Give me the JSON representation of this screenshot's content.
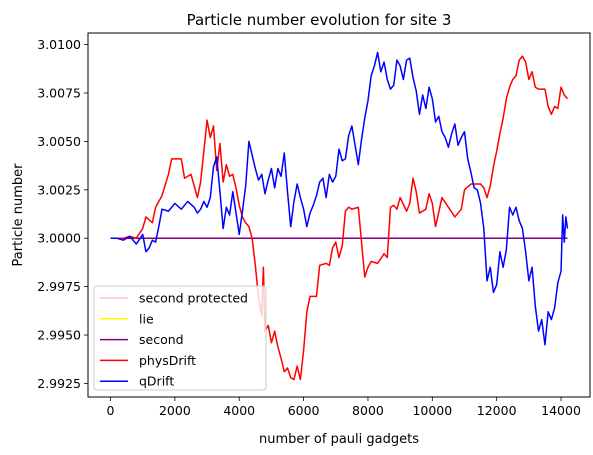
{
  "chart_data": {
    "type": "line",
    "title": "Particle number evolution for site 3",
    "xlabel": "number of pauli gadgets",
    "ylabel": "Particle number",
    "xlim": [
      -700,
      14900
    ],
    "ylim": [
      2.9918,
      3.0106
    ],
    "xticks": [
      0,
      2000,
      4000,
      6000,
      8000,
      10000,
      12000,
      14000
    ],
    "xtick_labels": [
      "0",
      "2000",
      "4000",
      "6000",
      "8000",
      "10000",
      "12000",
      "14000"
    ],
    "yticks": [
      2.9925,
      2.995,
      2.9975,
      3.0,
      3.0025,
      3.005,
      3.0075,
      3.01
    ],
    "ytick_labels": [
      "2.9925",
      "2.9950",
      "2.9975",
      "3.0000",
      "3.0025",
      "3.0050",
      "3.0075",
      "3.0100"
    ],
    "grid": false,
    "legend_position": "lower-left",
    "series": [
      {
        "name": "second protected",
        "color": "#ffc0cb",
        "points": [
          [
            0,
            3.0
          ],
          [
            14200,
            3.0
          ]
        ]
      },
      {
        "name": "lie",
        "color": "#ffff00",
        "points": [
          [
            0,
            3.0
          ],
          [
            14200,
            3.0
          ]
        ]
      },
      {
        "name": "second",
        "color": "#800080",
        "points": [
          [
            0,
            3.0
          ],
          [
            14200,
            3.0
          ]
        ]
      },
      {
        "name": "physDrift",
        "color": "#ff0000",
        "points": [
          [
            0,
            3.0
          ],
          [
            400,
            3.0
          ],
          [
            600,
            3.0001
          ],
          [
            800,
            3.0
          ],
          [
            1000,
            3.0005
          ],
          [
            1100,
            3.0011
          ],
          [
            1300,
            3.0008
          ],
          [
            1400,
            3.0016
          ],
          [
            1600,
            3.0022
          ],
          [
            1800,
            3.0033
          ],
          [
            1900,
            3.0041
          ],
          [
            2200,
            3.0041
          ],
          [
            2300,
            3.0031
          ],
          [
            2500,
            3.0033
          ],
          [
            2700,
            3.0021
          ],
          [
            2800,
            3.0029
          ],
          [
            2900,
            3.0045
          ],
          [
            3000,
            3.0061
          ],
          [
            3100,
            3.0052
          ],
          [
            3200,
            3.0058
          ],
          [
            3300,
            3.0035
          ],
          [
            3400,
            3.0049
          ],
          [
            3500,
            3.0029
          ],
          [
            3600,
            3.0038
          ],
          [
            3700,
            3.0032
          ],
          [
            3800,
            3.0033
          ],
          [
            3900,
            3.0026
          ],
          [
            4000,
            3.0017
          ],
          [
            4100,
            3.0011
          ],
          [
            4200,
            3.0008
          ],
          [
            4300,
            3.0006
          ],
          [
            4400,
            3.0
          ],
          [
            4500,
            2.9986
          ],
          [
            4600,
            2.9969
          ],
          [
            4700,
            2.996
          ],
          [
            4750,
            2.9985
          ],
          [
            4800,
            2.9952
          ],
          [
            4900,
            2.9955
          ],
          [
            5000,
            2.9946
          ],
          [
            5100,
            2.9952
          ],
          [
            5200,
            2.9944
          ],
          [
            5300,
            2.9938
          ],
          [
            5400,
            2.9931
          ],
          [
            5500,
            2.9933
          ],
          [
            5600,
            2.9928
          ],
          [
            5700,
            2.9927
          ],
          [
            5800,
            2.9934
          ],
          [
            5900,
            2.9927
          ],
          [
            6000,
            2.9942
          ],
          [
            6100,
            2.9962
          ],
          [
            6200,
            2.997
          ],
          [
            6400,
            2.997
          ],
          [
            6500,
            2.9986
          ],
          [
            6700,
            2.9987
          ],
          [
            6800,
            2.9986
          ],
          [
            6900,
            2.9995
          ],
          [
            7000,
            2.9998
          ],
          [
            7100,
            2.999
          ],
          [
            7200,
            2.9996
          ],
          [
            7300,
            3.0014
          ],
          [
            7400,
            3.0016
          ],
          [
            7500,
            3.0015
          ],
          [
            7700,
            3.0016
          ],
          [
            7800,
            2.9998
          ],
          [
            7900,
            2.998
          ],
          [
            8000,
            2.9985
          ],
          [
            8100,
            2.9988
          ],
          [
            8300,
            2.9987
          ],
          [
            8500,
            2.9992
          ],
          [
            8600,
            2.999
          ],
          [
            8700,
            3.0016
          ],
          [
            8800,
            3.0017
          ],
          [
            8900,
            3.0015
          ],
          [
            9000,
            3.0021
          ],
          [
            9200,
            3.0014
          ],
          [
            9300,
            3.0018
          ],
          [
            9400,
            3.0031
          ],
          [
            9500,
            3.0024
          ],
          [
            9600,
            3.0013
          ],
          [
            9800,
            3.0015
          ],
          [
            9900,
            3.0023
          ],
          [
            10000,
            3.0018
          ],
          [
            10100,
            3.0006
          ],
          [
            10300,
            3.0021
          ],
          [
            10500,
            3.0016
          ],
          [
            10700,
            3.0011
          ],
          [
            10900,
            3.0015
          ],
          [
            11000,
            3.0025
          ],
          [
            11200,
            3.0028
          ],
          [
            11500,
            3.0028
          ],
          [
            11600,
            3.0026
          ],
          [
            11700,
            3.0021
          ],
          [
            11800,
            3.0027
          ],
          [
            11900,
            3.0037
          ],
          [
            12000,
            3.0045
          ],
          [
            12100,
            3.0054
          ],
          [
            12200,
            3.0062
          ],
          [
            12300,
            3.0072
          ],
          [
            12400,
            3.0078
          ],
          [
            12500,
            3.0082
          ],
          [
            12600,
            3.0084
          ],
          [
            12700,
            3.0092
          ],
          [
            12800,
            3.0094
          ],
          [
            12900,
            3.0091
          ],
          [
            13000,
            3.0082
          ],
          [
            13100,
            3.0086
          ],
          [
            13200,
            3.0078
          ],
          [
            13300,
            3.0077
          ],
          [
            13500,
            3.0077
          ],
          [
            13600,
            3.0068
          ],
          [
            13700,
            3.0064
          ],
          [
            13800,
            3.0068
          ],
          [
            13900,
            3.0067
          ],
          [
            14000,
            3.0078
          ],
          [
            14100,
            3.0074
          ],
          [
            14200,
            3.0072
          ]
        ]
      },
      {
        "name": "qDrift",
        "color": "#0000ff",
        "points": [
          [
            0,
            3.0
          ],
          [
            200,
            3.0
          ],
          [
            400,
            2.9999
          ],
          [
            600,
            3.0001
          ],
          [
            800,
            2.9997
          ],
          [
            1000,
            3.0002
          ],
          [
            1100,
            2.9993
          ],
          [
            1200,
            2.9995
          ],
          [
            1300,
            2.9999
          ],
          [
            1400,
            2.9998
          ],
          [
            1500,
            3.0006
          ],
          [
            1600,
            3.0015
          ],
          [
            1800,
            3.0014
          ],
          [
            2000,
            3.0018
          ],
          [
            2200,
            3.0015
          ],
          [
            2400,
            3.0019
          ],
          [
            2600,
            3.0016
          ],
          [
            2700,
            3.0013
          ],
          [
            2800,
            3.0015
          ],
          [
            2900,
            3.0019
          ],
          [
            3000,
            3.0016
          ],
          [
            3100,
            3.0021
          ],
          [
            3200,
            3.0037
          ],
          [
            3300,
            3.0042
          ],
          [
            3400,
            3.0024
          ],
          [
            3500,
            3.0005
          ],
          [
            3600,
            3.0016
          ],
          [
            3700,
            3.0012
          ],
          [
            3800,
            3.0024
          ],
          [
            3900,
            3.0013
          ],
          [
            4000,
            3.0002
          ],
          [
            4100,
            3.0014
          ],
          [
            4200,
            3.0027
          ],
          [
            4300,
            3.005
          ],
          [
            4400,
            3.0043
          ],
          [
            4500,
            3.0036
          ],
          [
            4600,
            3.003
          ],
          [
            4700,
            3.0033
          ],
          [
            4800,
            3.0023
          ],
          [
            4900,
            3.003
          ],
          [
            5000,
            3.0036
          ],
          [
            5100,
            3.0026
          ],
          [
            5200,
            3.0036
          ],
          [
            5300,
            3.0032
          ],
          [
            5400,
            3.0044
          ],
          [
            5500,
            3.0024
          ],
          [
            5600,
            3.0006
          ],
          [
            5700,
            3.0019
          ],
          [
            5800,
            3.0028
          ],
          [
            5900,
            3.0021
          ],
          [
            6000,
            3.0015
          ],
          [
            6100,
            3.0006
          ],
          [
            6200,
            3.0013
          ],
          [
            6300,
            3.0017
          ],
          [
            6400,
            3.0022
          ],
          [
            6500,
            3.0029
          ],
          [
            6600,
            3.0031
          ],
          [
            6700,
            3.0021
          ],
          [
            6800,
            3.0033
          ],
          [
            6900,
            3.0029
          ],
          [
            7000,
            3.0032
          ],
          [
            7100,
            3.0046
          ],
          [
            7200,
            3.004
          ],
          [
            7300,
            3.0041
          ],
          [
            7400,
            3.0053
          ],
          [
            7500,
            3.0058
          ],
          [
            7600,
            3.0048
          ],
          [
            7700,
            3.0038
          ],
          [
            7800,
            3.0051
          ],
          [
            7900,
            3.0062
          ],
          [
            8000,
            3.0071
          ],
          [
            8100,
            3.0084
          ],
          [
            8200,
            3.0089
          ],
          [
            8300,
            3.0096
          ],
          [
            8400,
            3.0086
          ],
          [
            8500,
            3.0091
          ],
          [
            8600,
            3.0082
          ],
          [
            8700,
            3.0077
          ],
          [
            8800,
            3.0079
          ],
          [
            8900,
            3.0092
          ],
          [
            9000,
            3.0089
          ],
          [
            9100,
            3.0082
          ],
          [
            9200,
            3.0092
          ],
          [
            9300,
            3.0093
          ],
          [
            9400,
            3.0083
          ],
          [
            9500,
            3.0076
          ],
          [
            9600,
            3.0064
          ],
          [
            9700,
            3.0074
          ],
          [
            9800,
            3.0067
          ],
          [
            9900,
            3.0078
          ],
          [
            10000,
            3.0072
          ],
          [
            10100,
            3.006
          ],
          [
            10200,
            3.0063
          ],
          [
            10300,
            3.0055
          ],
          [
            10400,
            3.0052
          ],
          [
            10500,
            3.0047
          ],
          [
            10600,
            3.0054
          ],
          [
            10700,
            3.0059
          ],
          [
            10800,
            3.0048
          ],
          [
            10900,
            3.0052
          ],
          [
            11000,
            3.0055
          ],
          [
            11100,
            3.0041
          ],
          [
            11200,
            3.0034
          ],
          [
            11300,
            3.0026
          ],
          [
            11400,
            3.0025
          ],
          [
            11500,
            3.0018
          ],
          [
            11600,
            3.0005
          ],
          [
            11700,
            2.9978
          ],
          [
            11800,
            2.9985
          ],
          [
            11900,
            2.9972
          ],
          [
            12000,
            2.9976
          ],
          [
            12100,
            2.9993
          ],
          [
            12200,
            2.9985
          ],
          [
            12300,
            2.9994
          ],
          [
            12400,
            3.0016
          ],
          [
            12500,
            3.0012
          ],
          [
            12600,
            3.0016
          ],
          [
            12700,
            3.0009
          ],
          [
            12800,
            3.0005
          ],
          [
            12900,
            2.9993
          ],
          [
            13000,
            2.9978
          ],
          [
            13100,
            2.9985
          ],
          [
            13200,
            2.9965
          ],
          [
            13300,
            2.9952
          ],
          [
            13400,
            2.9958
          ],
          [
            13500,
            2.9945
          ],
          [
            13600,
            2.9962
          ],
          [
            13700,
            2.9958
          ],
          [
            13800,
            2.9964
          ],
          [
            13900,
            2.9977
          ],
          [
            14000,
            2.9983
          ],
          [
            14050,
            3.0012
          ],
          [
            14100,
            2.9998
          ],
          [
            14150,
            3.0011
          ],
          [
            14200,
            3.0005
          ]
        ]
      }
    ]
  }
}
